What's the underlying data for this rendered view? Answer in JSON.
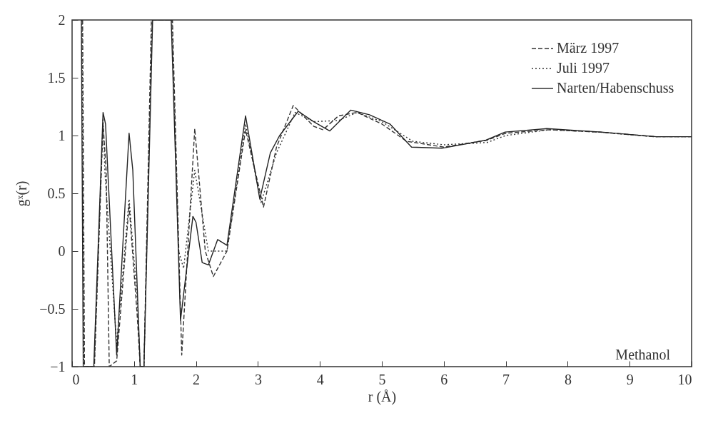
{
  "chart_data": {
    "type": "line",
    "xlabel": "r (Å)",
    "ylabel": "gˣ(r)",
    "xlim": [
      0,
      10
    ],
    "ylim": [
      -1,
      2
    ],
    "xticks": [
      0,
      1,
      2,
      3,
      4,
      5,
      6,
      7,
      8,
      9,
      10
    ],
    "yticks": [
      -1,
      -0.5,
      0,
      0.5,
      1,
      1.5,
      2
    ],
    "grid": false,
    "legend": "top right",
    "marker": "none",
    "annotations": [
      "Methanol"
    ],
    "series": [
      {
        "name": "März 1997",
        "color": "#333333",
        "line_style": "dashed",
        "x": [
          0.17,
          0.2,
          0.36,
          0.5,
          0.55,
          0.6,
          0.72,
          0.92,
          1.05,
          1.1,
          1.16,
          1.28,
          1.62,
          1.77,
          1.98,
          2.15,
          2.28,
          2.5,
          2.8,
          3.09,
          3.3,
          3.45,
          3.57,
          3.9,
          4.05,
          4.3,
          4.6,
          5.0,
          5.4,
          6.0,
          6.7,
          7.0,
          7.7,
          8.5,
          9.4,
          10
        ],
        "values": [
          2,
          -1,
          -1,
          1.1,
          0.7,
          -1,
          -0.95,
          0.4,
          -0.55,
          -1,
          -1,
          2,
          2,
          -0.9,
          1.06,
          0,
          -0.22,
          0,
          1.05,
          0.38,
          0.9,
          1.1,
          1.26,
          1.08,
          1.05,
          1.17,
          1.2,
          1.1,
          0.95,
          0.9,
          0.96,
          1.02,
          1.05,
          1.03,
          0.99,
          0.99
        ]
      },
      {
        "name": "Juli 1997",
        "color": "#333333",
        "line_style": "dotted",
        "x": [
          0.16,
          0.19,
          0.36,
          0.5,
          0.53,
          0.72,
          0.92,
          1.05,
          1.1,
          1.16,
          1.29,
          1.61,
          1.72,
          1.8,
          1.98,
          2.2,
          2.5,
          2.8,
          3.05,
          3.3,
          3.6,
          3.9,
          4.3,
          4.6,
          5.0,
          5.5,
          6.0,
          6.7,
          7.0,
          7.7,
          8.5,
          9.4,
          10
        ],
        "values": [
          2,
          -1,
          -1,
          1.15,
          0.68,
          -0.8,
          0.45,
          -0.4,
          -1,
          -1,
          2,
          2,
          0,
          -0.15,
          0.7,
          0,
          0,
          1.1,
          0.42,
          0.85,
          1.2,
          1.12,
          1.13,
          1.2,
          1.12,
          0.95,
          0.92,
          0.94,
          1.0,
          1.05,
          1.03,
          0.99,
          0.99
        ]
      },
      {
        "name": "Narten/Habenschuss",
        "color": "#222222",
        "line_style": "solid",
        "x": [
          0.15,
          0.18,
          0.35,
          0.5,
          0.54,
          0.72,
          0.92,
          0.98,
          1.1,
          1.16,
          1.3,
          1.6,
          1.75,
          1.95,
          2.0,
          2.1,
          2.2,
          2.35,
          2.5,
          2.8,
          3.03,
          3.2,
          3.35,
          3.65,
          3.9,
          4.16,
          4.5,
          4.8,
          5.13,
          5.48,
          5.97,
          6.68,
          6.99,
          7.66,
          8.54,
          9.43,
          10
        ],
        "values": [
          2,
          -1,
          -1,
          1.2,
          1.1,
          -0.9,
          1.02,
          0.7,
          -1,
          -1,
          2,
          2,
          -0.6,
          0.3,
          0.25,
          -0.1,
          -0.12,
          0.1,
          0.05,
          1.17,
          0.45,
          0.85,
          1.0,
          1.21,
          1.12,
          1.04,
          1.22,
          1.18,
          1.1,
          0.9,
          0.89,
          0.96,
          1.03,
          1.06,
          1.03,
          0.99,
          0.99
        ]
      }
    ]
  }
}
